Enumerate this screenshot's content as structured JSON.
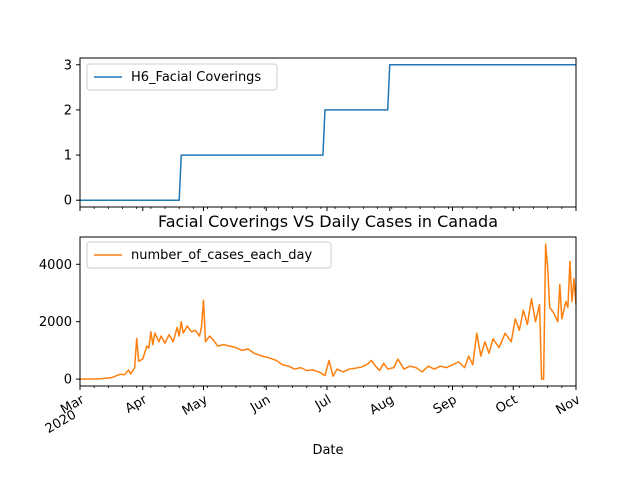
{
  "chart_data": [
    {
      "type": "line",
      "title": "",
      "xlabel": "",
      "ylabel": "",
      "xlim": [
        "2020-03-01",
        "2020-11-01"
      ],
      "ylim": [
        -0.15,
        3.15
      ],
      "yticks": [
        0,
        1,
        2,
        3
      ],
      "legend_position": "top-left",
      "grid": false,
      "series": [
        {
          "name": "H6_Facial Coverings",
          "color": "#1f77b4",
          "step": true,
          "points": [
            [
              "2020-03-01",
              0
            ],
            [
              "2020-04-19",
              0
            ],
            [
              "2020-04-20",
              1
            ],
            [
              "2020-06-29",
              1
            ],
            [
              "2020-06-30",
              2
            ],
            [
              "2020-07-31",
              2
            ],
            [
              "2020-08-01",
              3
            ],
            [
              "2020-11-01",
              3
            ]
          ]
        }
      ]
    },
    {
      "type": "line",
      "title": "Facial Coverings VS Daily Cases in Canada",
      "xlabel": "Date",
      "ylabel": "",
      "xlim": [
        "2020-03-01",
        "2020-11-01"
      ],
      "ylim": [
        -240,
        4950
      ],
      "yticks": [
        0,
        2000,
        4000
      ],
      "legend_position": "top-left",
      "grid": false,
      "xticks": [
        {
          "date": "2020-03-01",
          "label": "Mar",
          "sublabel": "2020"
        },
        {
          "date": "2020-04-01",
          "label": "Apr"
        },
        {
          "date": "2020-05-01",
          "label": "May"
        },
        {
          "date": "2020-06-01",
          "label": "Jun"
        },
        {
          "date": "2020-07-01",
          "label": "Jul"
        },
        {
          "date": "2020-08-01",
          "label": "Aug"
        },
        {
          "date": "2020-09-01",
          "label": "Sep"
        },
        {
          "date": "2020-10-01",
          "label": "Oct"
        },
        {
          "date": "2020-11-01",
          "label": "Nov"
        }
      ],
      "series": [
        {
          "name": "number_of_cases_each_day",
          "color": "#ff7f0e",
          "points": [
            [
              "2020-03-01",
              0
            ],
            [
              "2020-03-05",
              2
            ],
            [
              "2020-03-10",
              8
            ],
            [
              "2020-03-14",
              30
            ],
            [
              "2020-03-17",
              60
            ],
            [
              "2020-03-19",
              120
            ],
            [
              "2020-03-21",
              170
            ],
            [
              "2020-03-23",
              150
            ],
            [
              "2020-03-25",
              320
            ],
            [
              "2020-03-26",
              180
            ],
            [
              "2020-03-28",
              400
            ],
            [
              "2020-03-29",
              1420
            ],
            [
              "2020-03-30",
              620
            ],
            [
              "2020-04-01",
              700
            ],
            [
              "2020-04-03",
              1150
            ],
            [
              "2020-04-04",
              1080
            ],
            [
              "2020-04-05",
              1650
            ],
            [
              "2020-04-06",
              1200
            ],
            [
              "2020-04-07",
              1600
            ],
            [
              "2020-04-09",
              1300
            ],
            [
              "2020-04-10",
              1500
            ],
            [
              "2020-04-12",
              1250
            ],
            [
              "2020-04-14",
              1550
            ],
            [
              "2020-04-16",
              1300
            ],
            [
              "2020-04-18",
              1800
            ],
            [
              "2020-04-19",
              1500
            ],
            [
              "2020-04-20",
              2000
            ],
            [
              "2020-04-21",
              1600
            ],
            [
              "2020-04-23",
              1850
            ],
            [
              "2020-04-25",
              1650
            ],
            [
              "2020-04-27",
              1700
            ],
            [
              "2020-04-29",
              1500
            ],
            [
              "2020-04-30",
              1800
            ],
            [
              "2020-05-01",
              2750
            ],
            [
              "2020-05-02",
              1300
            ],
            [
              "2020-05-04",
              1500
            ],
            [
              "2020-05-06",
              1350
            ],
            [
              "2020-05-08",
              1150
            ],
            [
              "2020-05-11",
              1200
            ],
            [
              "2020-05-14",
              1150
            ],
            [
              "2020-05-17",
              1100
            ],
            [
              "2020-05-20",
              1000
            ],
            [
              "2020-05-23",
              1050
            ],
            [
              "2020-05-26",
              900
            ],
            [
              "2020-05-30",
              800
            ],
            [
              "2020-06-02",
              750
            ],
            [
              "2020-06-06",
              650
            ],
            [
              "2020-06-09",
              500
            ],
            [
              "2020-06-12",
              450
            ],
            [
              "2020-06-15",
              350
            ],
            [
              "2020-06-18",
              400
            ],
            [
              "2020-06-21",
              300
            ],
            [
              "2020-06-24",
              320
            ],
            [
              "2020-06-27",
              250
            ],
            [
              "2020-06-30",
              120
            ],
            [
              "2020-07-02",
              650
            ],
            [
              "2020-07-04",
              100
            ],
            [
              "2020-07-06",
              350
            ],
            [
              "2020-07-09",
              250
            ],
            [
              "2020-07-12",
              350
            ],
            [
              "2020-07-15",
              380
            ],
            [
              "2020-07-18",
              420
            ],
            [
              "2020-07-21",
              520
            ],
            [
              "2020-07-23",
              650
            ],
            [
              "2020-07-25",
              450
            ],
            [
              "2020-07-27",
              300
            ],
            [
              "2020-07-29",
              550
            ],
            [
              "2020-07-31",
              350
            ],
            [
              "2020-08-03",
              400
            ],
            [
              "2020-08-05",
              700
            ],
            [
              "2020-08-08",
              350
            ],
            [
              "2020-08-11",
              450
            ],
            [
              "2020-08-14",
              400
            ],
            [
              "2020-08-17",
              250
            ],
            [
              "2020-08-20",
              450
            ],
            [
              "2020-08-23",
              350
            ],
            [
              "2020-08-26",
              450
            ],
            [
              "2020-08-29",
              400
            ],
            [
              "2020-09-01",
              500
            ],
            [
              "2020-09-04",
              600
            ],
            [
              "2020-09-07",
              400
            ],
            [
              "2020-09-09",
              800
            ],
            [
              "2020-09-11",
              500
            ],
            [
              "2020-09-13",
              1600
            ],
            [
              "2020-09-15",
              800
            ],
            [
              "2020-09-17",
              1300
            ],
            [
              "2020-09-19",
              900
            ],
            [
              "2020-09-21",
              1400
            ],
            [
              "2020-09-24",
              1100
            ],
            [
              "2020-09-27",
              1600
            ],
            [
              "2020-09-30",
              1300
            ],
            [
              "2020-10-02",
              2100
            ],
            [
              "2020-10-04",
              1700
            ],
            [
              "2020-10-06",
              2400
            ],
            [
              "2020-10-08",
              1900
            ],
            [
              "2020-10-10",
              2800
            ],
            [
              "2020-10-12",
              2000
            ],
            [
              "2020-10-14",
              2600
            ],
            [
              "2020-10-15",
              0
            ],
            [
              "2020-10-16",
              0
            ],
            [
              "2020-10-17",
              4700
            ],
            [
              "2020-10-18",
              3900
            ],
            [
              "2020-10-19",
              2500
            ],
            [
              "2020-10-21",
              2300
            ],
            [
              "2020-10-23",
              2000
            ],
            [
              "2020-10-24",
              3300
            ],
            [
              "2020-10-25",
              2100
            ],
            [
              "2020-10-27",
              2700
            ],
            [
              "2020-10-28",
              2500
            ],
            [
              "2020-10-29",
              4100
            ],
            [
              "2020-10-30",
              2700
            ],
            [
              "2020-10-31",
              3500
            ],
            [
              "2020-11-01",
              2600
            ]
          ]
        }
      ]
    }
  ]
}
